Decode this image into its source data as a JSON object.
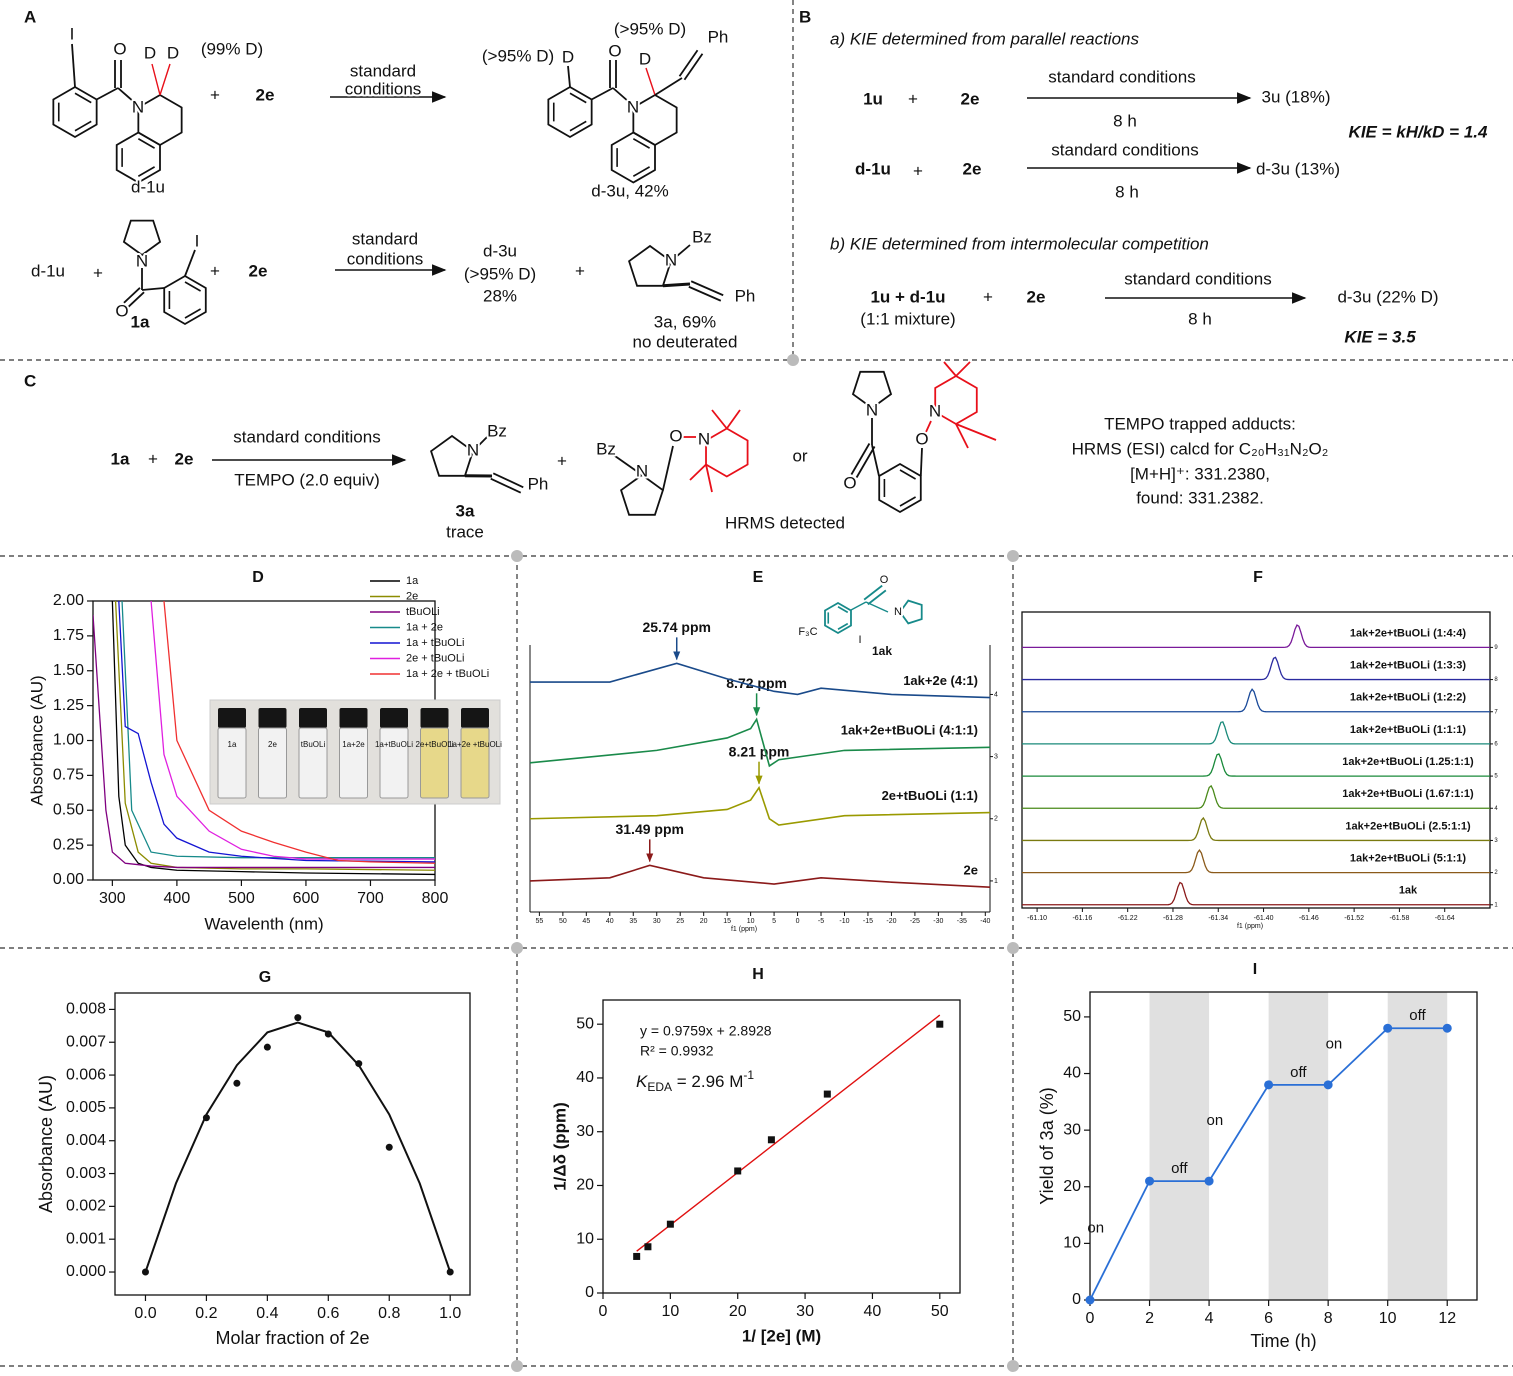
{
  "scheme_A": {
    "texts": [
      "A",
      "I",
      "O",
      "D",
      "D",
      "(99% D)",
      "N",
      "+",
      "2e",
      "standard",
      "conditions",
      "(>95% D)",
      "D",
      "O",
      "(>95% D)",
      "D",
      "Ph",
      "N",
      "d-3u, 42%",
      "d-1u",
      "d-1u",
      "+",
      "N",
      "I",
      "O",
      "1a",
      "+",
      "2e",
      "standard",
      "conditions",
      "d-3u",
      "(>95% D)",
      "28%",
      "+",
      "N",
      "Bz",
      "Ph",
      "3a, 69%",
      "no deuterated"
    ]
  },
  "scheme_B": {
    "texts": [
      "B",
      "a) KIE determined from parallel reactions",
      "1u",
      "+",
      "2e",
      "standard conditions",
      "8 h",
      "3u (18%)",
      "KIE = kH/kD = 1.4",
      "d-1u",
      "+",
      "2e",
      "standard conditions",
      "8 h",
      "d-3u (13%)",
      "b) KIE determined from intermolecular competition",
      "1u + d-1u",
      "(1:1 mixture)",
      "+",
      "2e",
      "standard conditions",
      "8 h",
      "d-3u (22% D)",
      "KIE = 3.5"
    ]
  },
  "scheme_C": {
    "texts": [
      "C",
      "1a",
      "+",
      "2e",
      "standard conditions",
      "TEMPO (2.0 equiv)",
      "N",
      "Bz",
      "Ph",
      "3a",
      "trace",
      "+",
      "Bz",
      "N",
      "O",
      "N",
      "or",
      "N",
      "O",
      "O",
      "N",
      "HRMS detected",
      "TEMPO trapped adducts:",
      "HRMS (ESI) calcd for C₂₀H₃₁N₂O₂",
      "[M+H]⁺: 331.2380,",
      "found: 331.2382."
    ]
  },
  "chart_data": [
    {
      "type": "line",
      "title": "D",
      "xlabel": "Wavelenth (nm)",
      "ylabel": "Absorbance (AU)",
      "xlim": [
        270,
        800
      ],
      "xticks": [
        300,
        400,
        500,
        600,
        700,
        800
      ],
      "ylim": [
        0,
        2
      ],
      "yticks": [
        {
          "value": 0,
          "label": "0.00"
        },
        0.25,
        {
          "value": 0.5,
          "label": "0.50"
        },
        0.75,
        {
          "value": 1,
          "label": "1.00"
        },
        1.25,
        {
          "value": 1.5,
          "label": "1.50"
        },
        1.75,
        {
          "value": 2,
          "label": "2.00"
        }
      ],
      "series": [
        {
          "name": "1a",
          "color": "#000000",
          "x": [
            300,
            310,
            320,
            340,
            360,
            400,
            500,
            600,
            800
          ],
          "values": [
            2.0,
            0.6,
            0.25,
            0.12,
            0.09,
            0.07,
            0.06,
            0.05,
            0.04
          ]
        },
        {
          "name": "2e",
          "color": "#8c8c00",
          "x": [
            305,
            320,
            340,
            360,
            400,
            500,
            600,
            800
          ],
          "values": [
            2.0,
            0.55,
            0.2,
            0.12,
            0.09,
            0.08,
            0.08,
            0.07
          ]
        },
        {
          "name": "tBuOLi",
          "color": "#800080",
          "x": [
            270,
            290,
            300,
            320,
            360,
            400,
            500,
            600,
            800
          ],
          "values": [
            1.9,
            0.5,
            0.2,
            0.12,
            0.1,
            0.09,
            0.09,
            0.09,
            0.09
          ]
        },
        {
          "name": "1a + 2e",
          "color": "#178a8a",
          "x": [
            315,
            330,
            360,
            400,
            500,
            600,
            800
          ],
          "values": [
            2.0,
            0.5,
            0.2,
            0.17,
            0.16,
            0.16,
            0.16
          ]
        },
        {
          "name": "1a +  tBuOLi",
          "color": "#1414d2",
          "x": [
            310,
            320,
            340,
            360,
            380,
            400,
            450,
            500,
            600,
            800
          ],
          "values": [
            2.0,
            1.1,
            1.05,
            0.7,
            0.4,
            0.3,
            0.2,
            0.17,
            0.14,
            0.13
          ]
        },
        {
          "name": "2e +  tBuOLi",
          "color": "#e020e0",
          "x": [
            360,
            380,
            400,
            450,
            500,
            550,
            600,
            800
          ],
          "values": [
            2.0,
            0.9,
            0.6,
            0.35,
            0.22,
            0.17,
            0.15,
            0.15
          ]
        },
        {
          "name": "1a + 2e +  tBuOLi",
          "color": "#f03030",
          "x": [
            380,
            400,
            450,
            500,
            550,
            600,
            650,
            700,
            800
          ],
          "values": [
            2.0,
            1.0,
            0.5,
            0.35,
            0.27,
            0.2,
            0.14,
            0.13,
            0.12
          ]
        }
      ],
      "inset_labels": [
        "1a",
        "2e",
        "tBuOLi",
        "1a+2e",
        "1a+tBuOLi",
        "2e+tBuOLi",
        "1a+2e +tBuOLi"
      ]
    },
    {
      "type": "spectrum",
      "title": "E",
      "xlabel": "f1 (ppm)",
      "xlim": [
        57,
        -41
      ],
      "xticks": [
        55,
        50,
        45,
        40,
        35,
        30,
        25,
        20,
        15,
        10,
        5,
        0,
        -5,
        -10,
        -15,
        -20,
        -25,
        -30,
        -35,
        -40
      ],
      "ylim": [
        0.5,
        5.6
      ],
      "yticks": [
        1,
        2,
        3,
        4
      ],
      "structure_labels": [
        "O",
        "N",
        "I",
        "F₃C",
        "1ak"
      ],
      "series": [
        {
          "name": "2e",
          "color": "#8b1a1a",
          "x": [
            57,
            40,
            31.49,
            20,
            5,
            0,
            -5,
            -20,
            -41
          ],
          "values": [
            1.0,
            1.05,
            1.25,
            1.05,
            0.95,
            1.0,
            1.05,
            0.98,
            0.9
          ],
          "peak": 31.49,
          "peak_label": "31.49 ppm"
        },
        {
          "name": "2e+tBuOLi (1:1)",
          "color": "#9a9a00",
          "x": [
            57,
            30,
            15,
            10,
            8.21,
            6,
            4,
            -10,
            -41
          ],
          "values": [
            2.0,
            2.05,
            2.15,
            2.3,
            2.5,
            2.0,
            1.9,
            2.05,
            2.1
          ],
          "peak": 8.21,
          "peak_label": "8.21 ppm"
        },
        {
          "name": "1ak+2e+tBuOLi (4:1:1)",
          "color": "#1a8a4a",
          "x": [
            57,
            30,
            15,
            10,
            8.72,
            6,
            4,
            -10,
            -41
          ],
          "values": [
            2.9,
            3.1,
            3.3,
            3.45,
            3.6,
            2.85,
            2.95,
            3.1,
            3.15
          ],
          "peak": 8.72,
          "peak_label": "8.72 ppm"
        },
        {
          "name": "1ak+2e (4:1)",
          "color": "#1a4a8a",
          "x": [
            57,
            40,
            25.74,
            15,
            5,
            0,
            -5,
            -20,
            -41
          ],
          "values": [
            4.2,
            4.2,
            4.5,
            4.25,
            4.05,
            4.0,
            4.1,
            4.0,
            3.95
          ],
          "peak": 25.74,
          "peak_label": "25.74 ppm"
        }
      ]
    },
    {
      "type": "spectrum_stack",
      "xlabel": "f1 (ppm)",
      "title": "F",
      "xlim": [
        -61.08,
        -61.7
      ],
      "xticks": [
        {
          "value": -61.1,
          "label": "-61.10"
        },
        -61.16,
        -61.22,
        -61.28,
        -61.34,
        {
          "value": -61.4,
          "label": "-61.40"
        },
        -61.46,
        -61.52,
        -61.58,
        -61.64
      ],
      "ylim": [
        0.9,
        10.1
      ],
      "yticks": [
        1,
        2,
        3,
        4,
        5,
        6,
        7,
        8,
        9
      ],
      "series": [
        {
          "name": "1ak",
          "color": "#8b1a1a",
          "peak": -61.29
        },
        {
          "name": "1ak+2e+tBuOLi (5:1:1)",
          "color": "#8b5a1a",
          "peak": -61.315
        },
        {
          "name": "1ak+2e+tBuOLi (2.5:1:1)",
          "color": "#7a7a10",
          "peak": -61.32
        },
        {
          "name": "1ak+2e+tBuOLi (1.67:1:1)",
          "color": "#4a8a1a",
          "peak": -61.33
        },
        {
          "name": "1ak+2e+tBuOLi (1.25:1:1)",
          "color": "#1a8a3a",
          "peak": -61.34
        },
        {
          "name": "1ak+2e+tBuOLi (1:1:1)",
          "color": "#1a8a7a",
          "peak": -61.345
        },
        {
          "name": "1ak+2e+tBuOLi (1:2:2)",
          "color": "#1a4a9a",
          "peak": -61.385
        },
        {
          "name": "1ak+2e+tBuOLi (1:3:3)",
          "color": "#2a2aa0",
          "peak": -61.415
        },
        {
          "name": "1ak+2e+tBuOLi (1:4:4)",
          "color": "#7a1a9a",
          "peak": -61.445
        }
      ]
    },
    {
      "type": "scatter_fit",
      "title": "G",
      "xlabel": "Molar fraction of 2e",
      "ylabel": "Absorbance (AU)",
      "xlim": [
        -0.1,
        1.065
      ],
      "xticks": [
        {
          "value": 0,
          "label": "0.0"
        },
        0.2,
        0.4,
        0.6,
        0.8,
        {
          "value": 1,
          "label": "1.0"
        }
      ],
      "ylim": [
        -0.0007,
        0.0085
      ],
      "yticks": [
        {
          "value": 0,
          "label": "0.000"
        },
        0.001,
        0.002,
        0.003,
        0.004,
        0.005,
        0.006,
        0.007,
        0.008
      ],
      "points": {
        "x": [
          0,
          0.2,
          0.3,
          0.4,
          0.5,
          0.6,
          0.7,
          0.8,
          1.0
        ],
        "values": [
          0,
          0.0047,
          0.00575,
          0.00685,
          0.00775,
          0.00725,
          0.00635,
          0.0038,
          0
        ]
      },
      "fit": {
        "x": [
          0,
          0.1,
          0.2,
          0.3,
          0.4,
          0.5,
          0.6,
          0.7,
          0.8,
          0.9,
          1.0
        ],
        "values": [
          0,
          0.0027,
          0.0048,
          0.0063,
          0.0073,
          0.0076,
          0.0073,
          0.0063,
          0.0048,
          0.0027,
          0
        ]
      }
    },
    {
      "type": "scatter_fit",
      "title": "H",
      "xlabel": "1/ [2e] (M)",
      "ylabel": "1/Δδ (ppm)",
      "xlim": [
        0,
        53
      ],
      "xticks": [
        0,
        10,
        20,
        30,
        40,
        50
      ],
      "ylim": [
        0,
        54.5
      ],
      "yticks": [
        0,
        10,
        20,
        30,
        40,
        50
      ],
      "points": {
        "x": [
          5,
          6.67,
          10,
          20,
          25,
          33.3,
          50
        ],
        "values": [
          6.8,
          8.6,
          12.8,
          22.7,
          28.5,
          37,
          50
        ]
      },
      "fit": {
        "x": [
          5,
          50
        ],
        "values": [
          7.77,
          51.69
        ]
      },
      "equation": "y = 0.9759x + 2.8928",
      "r_squared": "R² = 0.9932",
      "k_symbol": "K",
      "k_subscript": "EDA",
      "k_value": " = 2.96 M",
      "k_superscript": "-1"
    },
    {
      "type": "onoff",
      "title": "I",
      "xlabel": "Time (h)",
      "ylabel": "Yield of 3a (%)",
      "xlim": [
        0,
        13
      ],
      "xticks": [
        0,
        2,
        4,
        6,
        8,
        10,
        12
      ],
      "ylim": [
        0,
        54.4
      ],
      "yticks": [
        0,
        10,
        20,
        30,
        40,
        50
      ],
      "x": [
        0,
        2,
        4,
        6,
        8,
        10,
        12
      ],
      "values": [
        0,
        21,
        21,
        38,
        38,
        48,
        48
      ],
      "color": "#2a6fd6",
      "dark_periods": [
        [
          2,
          4
        ],
        [
          6,
          8
        ],
        [
          10,
          12
        ]
      ],
      "segment_labels": [
        "on",
        "off",
        "on",
        "off",
        "on",
        "off"
      ]
    }
  ]
}
